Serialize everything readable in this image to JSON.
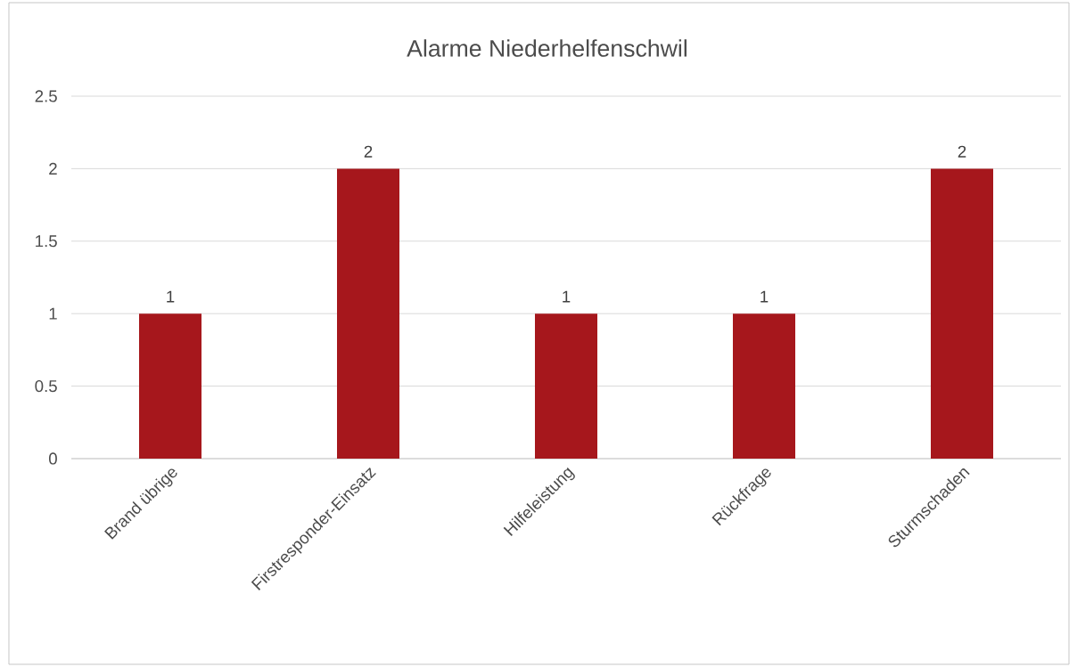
{
  "chart_data": {
    "type": "bar",
    "title": "Alarme Niederhelfenschwil",
    "categories": [
      "Brand übrige",
      "Firstresponder-Einsatz",
      "Hilfeleistung",
      "Rückfrage",
      "Sturmschaden"
    ],
    "values": [
      1,
      2,
      1,
      1,
      2
    ],
    "color": "#a6171c",
    "ylim": [
      0,
      2.5
    ],
    "yticks": [
      0,
      0.5,
      1,
      1.5,
      2,
      2.5
    ],
    "grid": "y",
    "data_labels": true
  }
}
